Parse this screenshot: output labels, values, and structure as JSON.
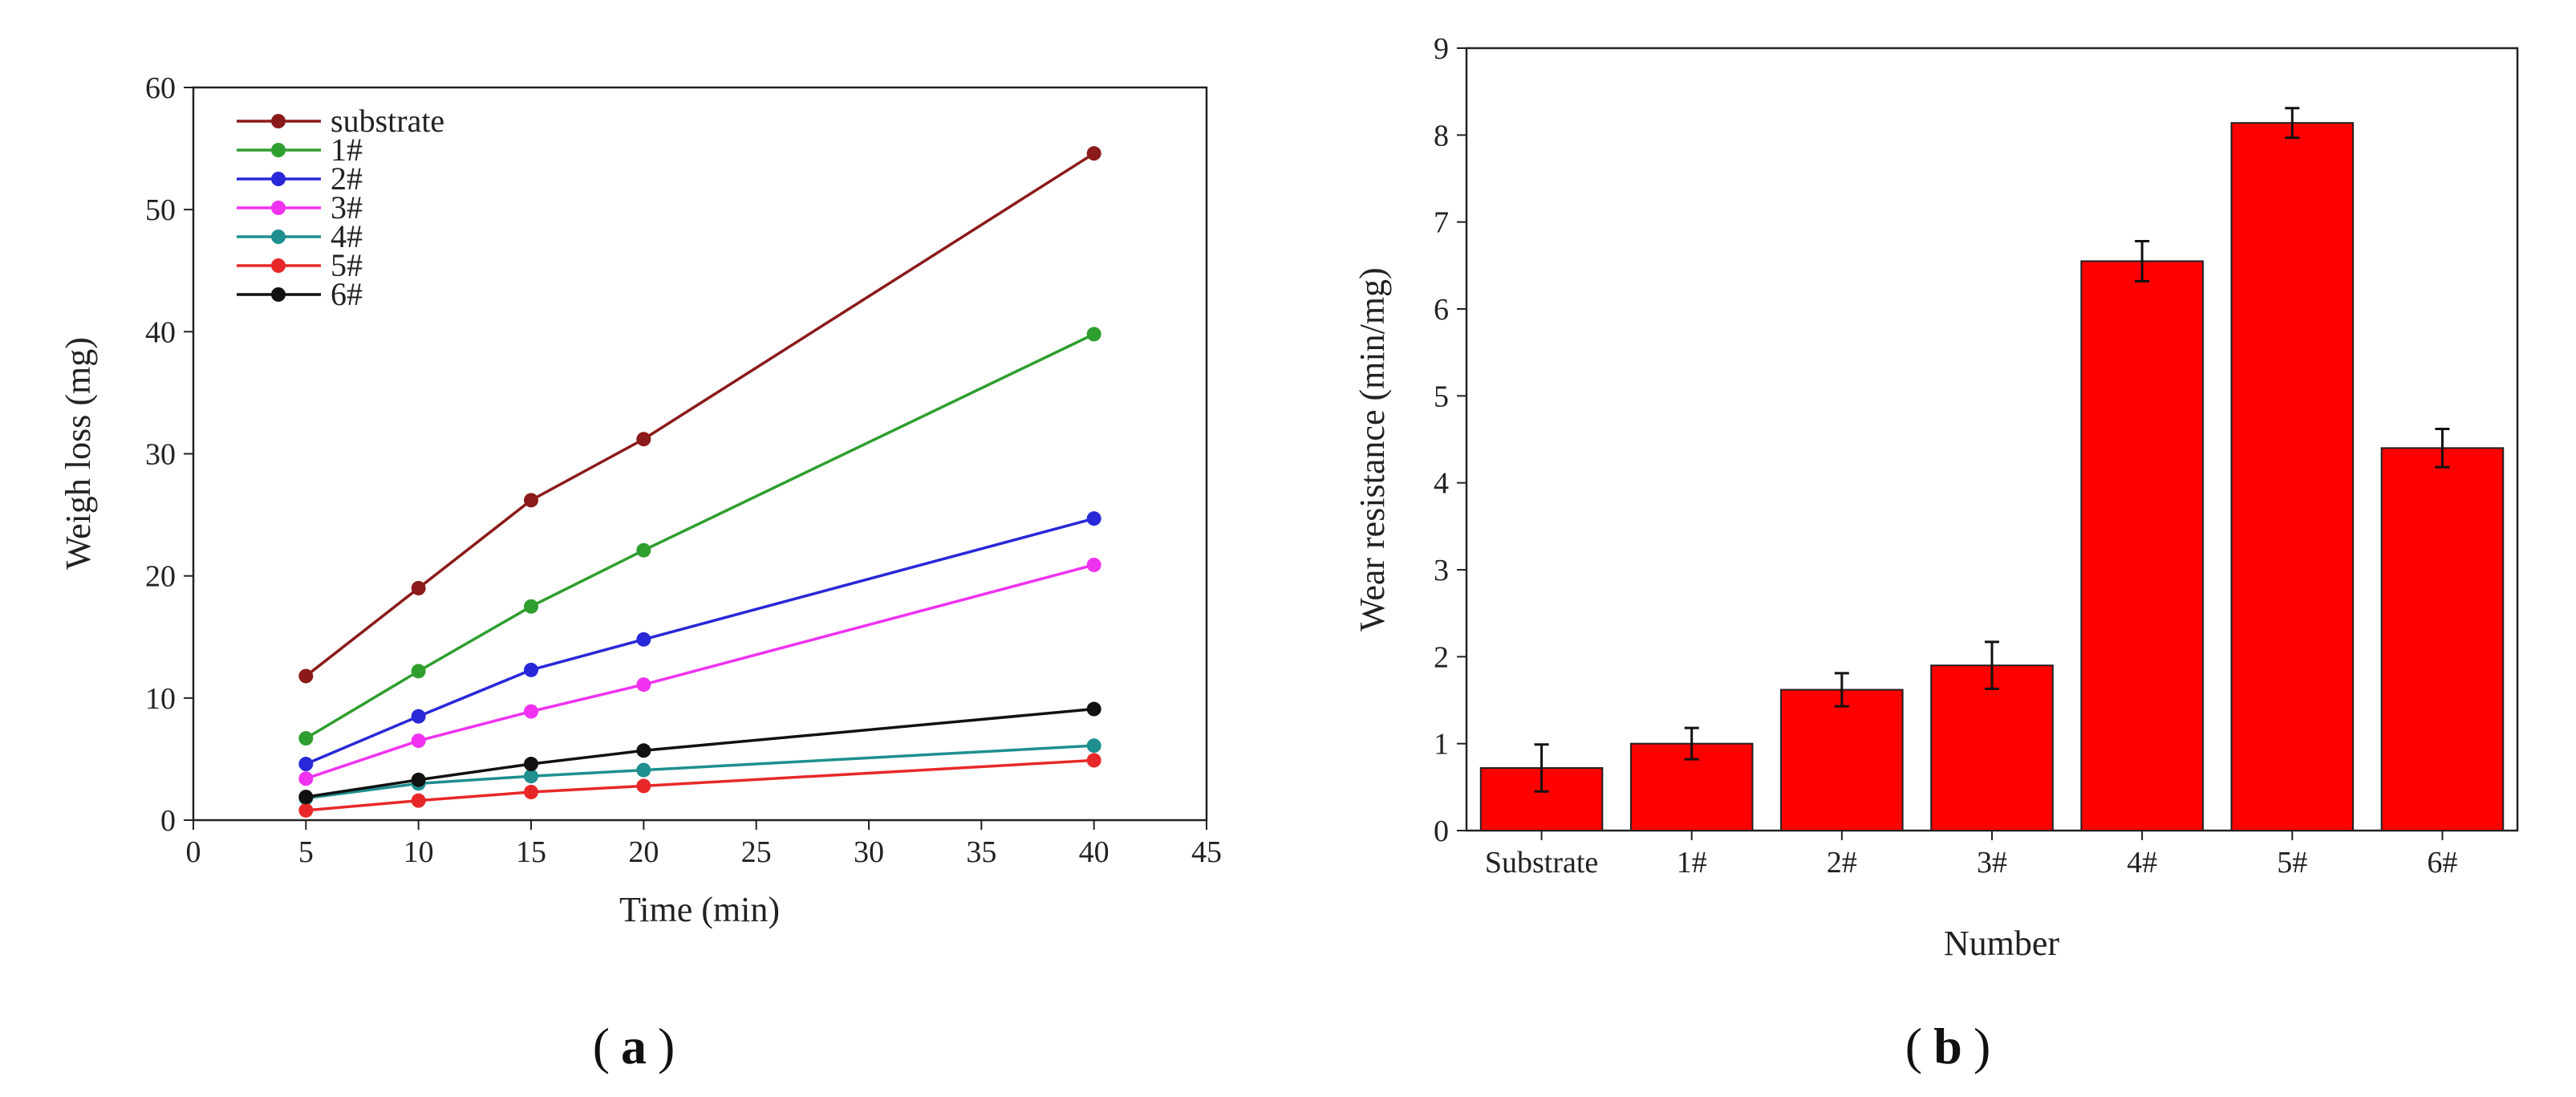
{
  "chart_data": [
    {
      "id": "a",
      "type": "line",
      "caption_letter": "a",
      "xlabel": "Time (min)",
      "ylabel": "Weigh loss (mg)",
      "xlim": [
        0,
        45
      ],
      "ylim": [
        0,
        60
      ],
      "xticks": [
        0,
        5,
        10,
        15,
        20,
        25,
        30,
        35,
        40,
        45
      ],
      "yticks": [
        0,
        10,
        20,
        30,
        40,
        50,
        60
      ],
      "legend_position": "top-left",
      "x": [
        5,
        10,
        15,
        20,
        40
      ],
      "series": [
        {
          "name": "substrate",
          "color": "#8b1a1a",
          "values": [
            11.8,
            19.0,
            26.2,
            31.2,
            54.6
          ]
        },
        {
          "name": "1#",
          "color": "#2e9e2e",
          "values": [
            6.7,
            12.2,
            17.5,
            22.1,
            39.8
          ]
        },
        {
          "name": "2#",
          "color": "#2828d8",
          "values": [
            4.6,
            8.5,
            12.3,
            14.8,
            24.7
          ]
        },
        {
          "name": "3#",
          "color": "#f032f0",
          "values": [
            3.4,
            6.5,
            8.9,
            11.1,
            20.9
          ]
        },
        {
          "name": "4#",
          "color": "#1f8f8f",
          "values": [
            1.8,
            3.0,
            3.6,
            4.1,
            6.1
          ]
        },
        {
          "name": "5#",
          "color": "#e82828",
          "values": [
            0.8,
            1.6,
            2.3,
            2.8,
            4.9
          ]
        },
        {
          "name": "6#",
          "color": "#111111",
          "values": [
            1.9,
            3.3,
            4.6,
            5.7,
            9.1
          ]
        }
      ]
    },
    {
      "id": "b",
      "type": "bar",
      "caption_letter": "b",
      "xlabel": "Number",
      "ylabel": "Wear resistance (min/mg)",
      "ylim": [
        0,
        9
      ],
      "yticks": [
        0,
        1,
        2,
        3,
        4,
        5,
        6,
        7,
        8,
        9
      ],
      "bar_color": "#ff0000",
      "categories": [
        "Substrate",
        "1#",
        "2#",
        "3#",
        "4#",
        "5#",
        "6#"
      ],
      "values": [
        0.72,
        1.0,
        1.62,
        1.9,
        6.55,
        8.14,
        4.4
      ],
      "errors": [
        0.27,
        0.18,
        0.19,
        0.27,
        0.23,
        0.17,
        0.22
      ]
    }
  ]
}
